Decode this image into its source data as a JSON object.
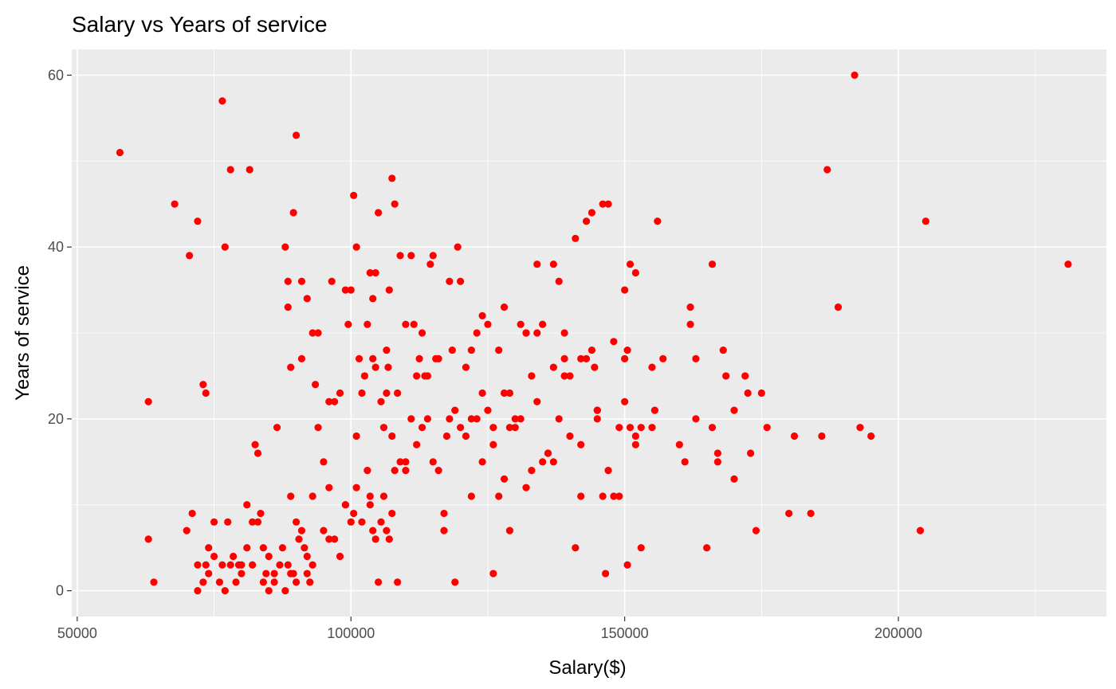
{
  "chart_data": {
    "type": "scatter",
    "title": "Salary vs Years of service",
    "xlabel": "Salary($)",
    "ylabel": "Years of service",
    "xlim": [
      49000,
      238000
    ],
    "ylim": [
      -3,
      63
    ],
    "x_ticks": [
      50000,
      100000,
      150000,
      200000
    ],
    "x_tick_labels": [
      "50000",
      "100000",
      "150000",
      "200000"
    ],
    "y_ticks": [
      0,
      20,
      40,
      60
    ],
    "y_tick_labels": [
      "0",
      "20",
      "40",
      "60"
    ],
    "grid": true,
    "point_color": "#ff0000",
    "panel_color": "#ebebeb",
    "points": [
      [
        57800,
        51
      ],
      [
        76500,
        57
      ],
      [
        90000,
        53
      ],
      [
        192000,
        60
      ],
      [
        67800,
        45
      ],
      [
        72000,
        43
      ],
      [
        70500,
        39
      ],
      [
        77000,
        40
      ],
      [
        78000,
        49
      ],
      [
        81500,
        49
      ],
      [
        63000,
        22
      ],
      [
        73000,
        24
      ],
      [
        73500,
        23
      ],
      [
        63000,
        6
      ],
      [
        64000,
        1
      ],
      [
        70000,
        7
      ],
      [
        71000,
        9
      ],
      [
        72000,
        3
      ],
      [
        73500,
        3
      ],
      [
        74000,
        5
      ],
      [
        75000,
        8
      ],
      [
        76500,
        3
      ],
      [
        77500,
        8
      ],
      [
        78500,
        4
      ],
      [
        79500,
        3
      ],
      [
        80000,
        2
      ],
      [
        81000,
        10
      ],
      [
        82000,
        8
      ],
      [
        82500,
        17
      ],
      [
        83000,
        16
      ],
      [
        83500,
        9
      ],
      [
        84000,
        5
      ],
      [
        84500,
        2
      ],
      [
        85000,
        0
      ],
      [
        86000,
        1
      ],
      [
        86500,
        19
      ],
      [
        87500,
        5
      ],
      [
        88500,
        3
      ],
      [
        89000,
        11
      ],
      [
        89500,
        2
      ],
      [
        90000,
        8
      ],
      [
        90500,
        6
      ],
      [
        91500,
        5
      ],
      [
        92000,
        2
      ],
      [
        92500,
        1
      ],
      [
        93000,
        3
      ],
      [
        94000,
        19
      ],
      [
        95000,
        15
      ],
      [
        96000,
        6
      ],
      [
        97000,
        22
      ],
      [
        98000,
        23
      ],
      [
        99000,
        10
      ],
      [
        99500,
        31
      ],
      [
        100000,
        35
      ],
      [
        100500,
        46
      ],
      [
        101000,
        40
      ],
      [
        101500,
        27
      ],
      [
        102000,
        23
      ],
      [
        103000,
        31
      ],
      [
        103500,
        37
      ],
      [
        104000,
        27
      ],
      [
        104500,
        37
      ],
      [
        105000,
        44
      ],
      [
        106000,
        19
      ],
      [
        106500,
        23
      ],
      [
        107000,
        35
      ],
      [
        107500,
        48
      ],
      [
        108000,
        45
      ],
      [
        109000,
        39
      ],
      [
        110000,
        15
      ],
      [
        111000,
        39
      ],
      [
        112000,
        25
      ],
      [
        113000,
        30
      ],
      [
        114000,
        20
      ],
      [
        115000,
        39
      ],
      [
        116000,
        27
      ],
      [
        117000,
        9
      ],
      [
        118000,
        36
      ],
      [
        119000,
        21
      ],
      [
        119500,
        40
      ],
      [
        120000,
        36
      ],
      [
        121000,
        18
      ],
      [
        122000,
        28
      ],
      [
        123000,
        30
      ],
      [
        124000,
        32
      ],
      [
        125000,
        31
      ],
      [
        126000,
        19
      ],
      [
        127000,
        28
      ],
      [
        128000,
        33
      ],
      [
        129000,
        23
      ],
      [
        130000,
        19
      ],
      [
        131000,
        31
      ],
      [
        132000,
        30
      ],
      [
        133000,
        25
      ],
      [
        134000,
        38
      ],
      [
        135000,
        31
      ],
      [
        136000,
        16
      ],
      [
        137000,
        38
      ],
      [
        138000,
        36
      ],
      [
        139000,
        30
      ],
      [
        140000,
        25
      ],
      [
        141000,
        41
      ],
      [
        142000,
        27
      ],
      [
        143000,
        43
      ],
      [
        144000,
        44
      ],
      [
        145000,
        20
      ],
      [
        146000,
        45
      ],
      [
        147000,
        45
      ],
      [
        148000,
        29
      ],
      [
        149000,
        19
      ],
      [
        150000,
        35
      ],
      [
        151000,
        38
      ],
      [
        152000,
        37
      ],
      [
        153000,
        19
      ],
      [
        155000,
        26
      ],
      [
        156000,
        43
      ],
      [
        157000,
        27
      ],
      [
        160000,
        17
      ],
      [
        161000,
        15
      ],
      [
        162000,
        33
      ],
      [
        163000,
        27
      ],
      [
        165000,
        5
      ],
      [
        166000,
        38
      ],
      [
        167000,
        16
      ],
      [
        168000,
        28
      ],
      [
        170000,
        21
      ],
      [
        172000,
        25
      ],
      [
        173000,
        16
      ],
      [
        175000,
        23
      ],
      [
        176000,
        19
      ],
      [
        180000,
        9
      ],
      [
        181000,
        18
      ],
      [
        184000,
        9
      ],
      [
        186000,
        18
      ],
      [
        187000,
        49
      ],
      [
        189000,
        33
      ],
      [
        193000,
        19
      ],
      [
        195000,
        18
      ],
      [
        204000,
        7
      ],
      [
        205000,
        43
      ],
      [
        231000,
        38
      ],
      [
        72000,
        0
      ],
      [
        73000,
        1
      ],
      [
        74000,
        2
      ],
      [
        75000,
        4
      ],
      [
        76000,
        1
      ],
      [
        77000,
        0
      ],
      [
        78000,
        3
      ],
      [
        79000,
        1
      ],
      [
        80000,
        3
      ],
      [
        81000,
        5
      ],
      [
        82000,
        3
      ],
      [
        83000,
        8
      ],
      [
        84000,
        1
      ],
      [
        85000,
        4
      ],
      [
        86000,
        2
      ],
      [
        87000,
        3
      ],
      [
        88000,
        0
      ],
      [
        89000,
        2
      ],
      [
        90000,
        1
      ],
      [
        91000,
        7
      ],
      [
        92000,
        4
      ],
      [
        93000,
        11
      ],
      [
        94000,
        30
      ],
      [
        95000,
        7
      ],
      [
        96000,
        12
      ],
      [
        97000,
        6
      ],
      [
        98000,
        4
      ],
      [
        99000,
        10
      ],
      [
        100000,
        8
      ],
      [
        101000,
        12
      ],
      [
        102000,
        8
      ],
      [
        103000,
        14
      ],
      [
        103500,
        11
      ],
      [
        104000,
        7
      ],
      [
        104500,
        6
      ],
      [
        105000,
        1
      ],
      [
        105500,
        8
      ],
      [
        106000,
        11
      ],
      [
        106500,
        7
      ],
      [
        107000,
        6
      ],
      [
        107500,
        9
      ],
      [
        108000,
        14
      ],
      [
        108500,
        1
      ],
      [
        109000,
        15
      ],
      [
        110000,
        14
      ],
      [
        111000,
        20
      ],
      [
        112000,
        17
      ],
      [
        113000,
        19
      ],
      [
        114000,
        25
      ],
      [
        115000,
        15
      ],
      [
        116000,
        14
      ],
      [
        117000,
        7
      ],
      [
        118000,
        20
      ],
      [
        119000,
        1
      ],
      [
        120000,
        19
      ],
      [
        121000,
        26
      ],
      [
        122000,
        11
      ],
      [
        123000,
        20
      ],
      [
        124000,
        23
      ],
      [
        125000,
        21
      ],
      [
        126000,
        2
      ],
      [
        127000,
        11
      ],
      [
        128000,
        13
      ],
      [
        129000,
        7
      ],
      [
        130000,
        20
      ],
      [
        131000,
        20
      ],
      [
        132000,
        12
      ],
      [
        133000,
        14
      ],
      [
        134000,
        30
      ],
      [
        135000,
        15
      ],
      [
        136000,
        16
      ],
      [
        137000,
        15
      ],
      [
        138000,
        20
      ],
      [
        139000,
        27
      ],
      [
        140000,
        18
      ],
      [
        141000,
        5
      ],
      [
        142000,
        11
      ],
      [
        143000,
        27
      ],
      [
        144000,
        28
      ],
      [
        145000,
        21
      ],
      [
        146000,
        11
      ],
      [
        146500,
        2
      ],
      [
        147000,
        14
      ],
      [
        148000,
        11
      ],
      [
        149000,
        11
      ],
      [
        150000,
        22
      ],
      [
        150500,
        3
      ],
      [
        151000,
        19
      ],
      [
        152000,
        18
      ],
      [
        153000,
        5
      ],
      [
        155000,
        19
      ],
      [
        162000,
        31
      ],
      [
        163000,
        20
      ],
      [
        166000,
        19
      ],
      [
        167000,
        15
      ],
      [
        170000,
        13
      ],
      [
        174000,
        7
      ],
      [
        88500,
        33
      ],
      [
        88500,
        36
      ],
      [
        91000,
        36
      ],
      [
        92000,
        34
      ],
      [
        93000,
        30
      ],
      [
        93500,
        24
      ],
      [
        89500,
        44
      ],
      [
        89000,
        26
      ],
      [
        91000,
        27
      ],
      [
        88000,
        40
      ],
      [
        96000,
        22
      ],
      [
        96500,
        36
      ],
      [
        99000,
        35
      ],
      [
        100500,
        9
      ],
      [
        101000,
        18
      ],
      [
        102500,
        25
      ],
      [
        103500,
        10
      ],
      [
        104000,
        34
      ],
      [
        104500,
        26
      ],
      [
        105500,
        22
      ],
      [
        106500,
        28
      ],
      [
        106800,
        26
      ],
      [
        107500,
        18
      ],
      [
        108500,
        23
      ],
      [
        110000,
        31
      ],
      [
        111500,
        31
      ],
      [
        112500,
        27
      ],
      [
        113500,
        25
      ],
      [
        114500,
        38
      ],
      [
        115500,
        27
      ],
      [
        117500,
        18
      ],
      [
        118500,
        28
      ],
      [
        122000,
        20
      ],
      [
        124000,
        15
      ],
      [
        126000,
        17
      ],
      [
        128000,
        23
      ],
      [
        129000,
        19
      ],
      [
        132000,
        30
      ],
      [
        134000,
        22
      ],
      [
        137000,
        26
      ],
      [
        139000,
        25
      ],
      [
        142000,
        17
      ],
      [
        144500,
        26
      ],
      [
        145000,
        21
      ],
      [
        150000,
        27
      ],
      [
        150500,
        28
      ],
      [
        152000,
        17
      ],
      [
        155500,
        21
      ],
      [
        168500,
        25
      ],
      [
        172500,
        23
      ]
    ]
  }
}
